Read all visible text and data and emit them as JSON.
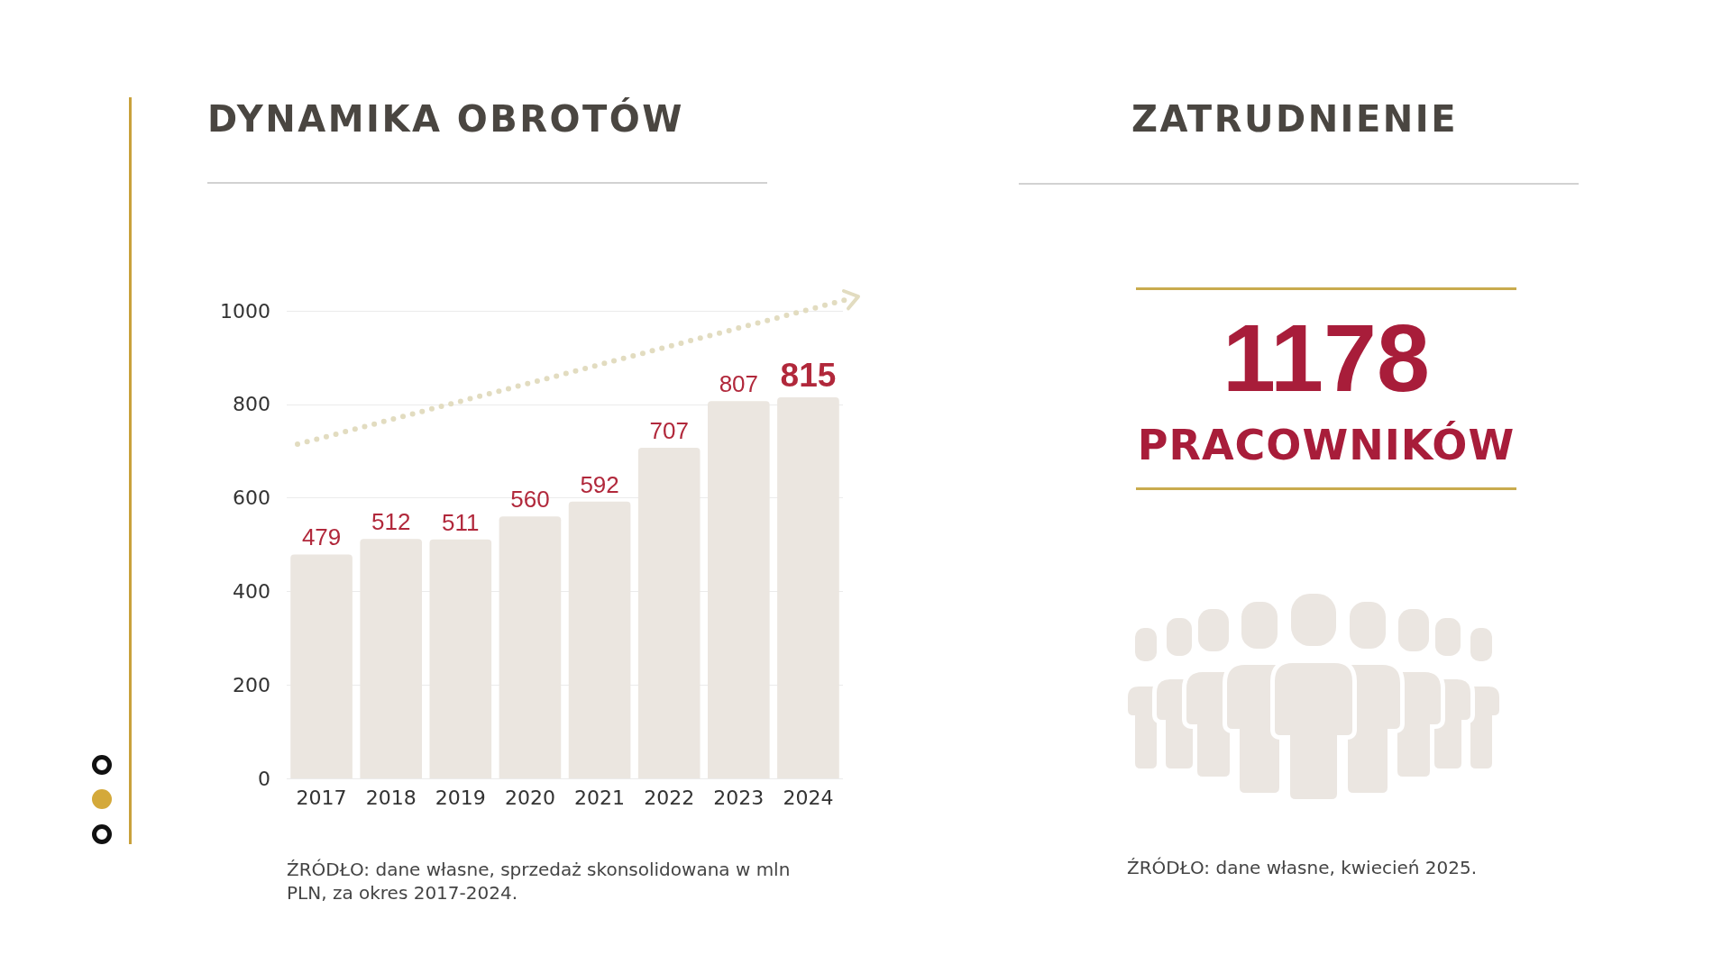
{
  "chart_data": [
    {
      "type": "bar",
      "title": "DYNAMIKA OBROTÓW",
      "categories": [
        "2017",
        "2018",
        "2019",
        "2020",
        "2021",
        "2022",
        "2023",
        "2024"
      ],
      "values": [
        479,
        512,
        511,
        560,
        592,
        707,
        807,
        815
      ],
      "color": "#ebe6e0",
      "ylim": [
        0,
        1000
      ],
      "yticks": [
        0,
        200,
        400,
        600,
        800,
        1000
      ],
      "grid": "y",
      "data_labels": true,
      "annotations": [
        "ŹRÓDŁO: dane własne, sprzedaż skonsolidowana w mln PLN, za okres 2017-2024."
      ]
    },
    {
      "type": "other",
      "title": "ZATRUDNIENIE",
      "annotations": [
        "1178",
        "PRACOWNIKÓW",
        "ŹRÓDŁO: dane własne, kwiecień 2025."
      ]
    }
  ]
}
